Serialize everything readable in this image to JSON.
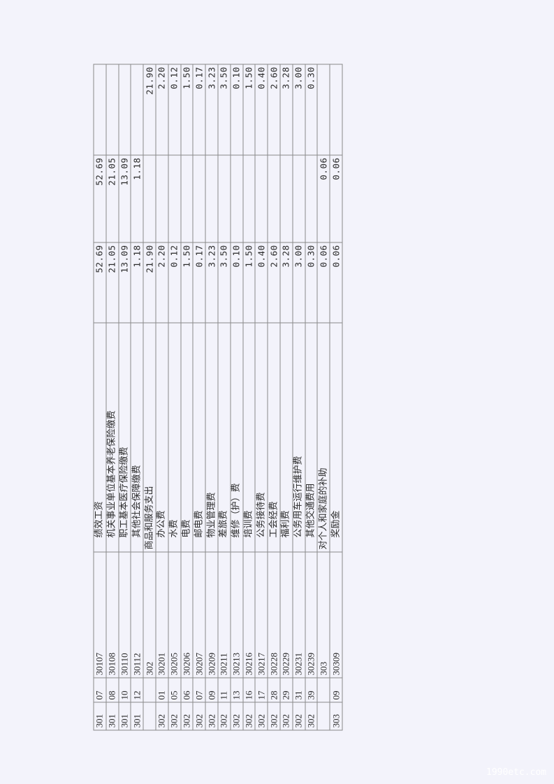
{
  "rows": [
    {
      "cls": "301",
      "item": "07",
      "code": "30107",
      "name": "绩效工资",
      "level": 2,
      "total": "52.69",
      "c2": "52.69",
      "c3": ""
    },
    {
      "cls": "301",
      "item": "08",
      "code": "30108",
      "name": "机关事业单位基本养老保险缴费",
      "level": 2,
      "total": "21.05",
      "c2": "21.05",
      "c3": ""
    },
    {
      "cls": "301",
      "item": "10",
      "code": "30110",
      "name": "职工基本医疗保险缴费",
      "level": 2,
      "total": "13.09",
      "c2": "13.09",
      "c3": ""
    },
    {
      "cls": "301",
      "item": "12",
      "code": "30112",
      "name": "其他社会保障缴费",
      "level": 2,
      "total": "1.18",
      "c2": "1.18",
      "c3": ""
    },
    {
      "cls": "",
      "item": "",
      "code": "302",
      "name": "商品和服务支出",
      "level": 1,
      "total": "21.90",
      "c2": "",
      "c3": "21.90"
    },
    {
      "cls": "302",
      "item": "01",
      "code": "30201",
      "name": "办公费",
      "level": 2,
      "total": "2.20",
      "c2": "",
      "c3": "2.20"
    },
    {
      "cls": "302",
      "item": "05",
      "code": "30205",
      "name": "水费",
      "level": 2,
      "total": "0.12",
      "c2": "",
      "c3": "0.12"
    },
    {
      "cls": "302",
      "item": "06",
      "code": "30206",
      "name": "电费",
      "level": 2,
      "total": "1.50",
      "c2": "",
      "c3": "1.50"
    },
    {
      "cls": "302",
      "item": "07",
      "code": "30207",
      "name": "邮电费",
      "level": 2,
      "total": "0.17",
      "c2": "",
      "c3": "0.17"
    },
    {
      "cls": "302",
      "item": "09",
      "code": "30209",
      "name": "物业管理费",
      "level": 2,
      "total": "3.23",
      "c2": "",
      "c3": "3.23"
    },
    {
      "cls": "302",
      "item": "11",
      "code": "30211",
      "name": "差旅费",
      "level": 2,
      "total": "3.50",
      "c2": "",
      "c3": "3.50"
    },
    {
      "cls": "302",
      "item": "13",
      "code": "30213",
      "name": "维修（护）费",
      "level": 2,
      "total": "0.10",
      "c2": "",
      "c3": "0.10"
    },
    {
      "cls": "302",
      "item": "16",
      "code": "30216",
      "name": "培训费",
      "level": 2,
      "total": "1.50",
      "c2": "",
      "c3": "1.50"
    },
    {
      "cls": "302",
      "item": "17",
      "code": "30217",
      "name": "公务接待费",
      "level": 2,
      "total": "0.40",
      "c2": "",
      "c3": "0.40"
    },
    {
      "cls": "302",
      "item": "28",
      "code": "30228",
      "name": "工会经费",
      "level": 2,
      "total": "2.60",
      "c2": "",
      "c3": "2.60"
    },
    {
      "cls": "302",
      "item": "29",
      "code": "30229",
      "name": "福利费",
      "level": 2,
      "total": "3.28",
      "c2": "",
      "c3": "3.28"
    },
    {
      "cls": "302",
      "item": "31",
      "code": "30231",
      "name": "公务用车运行维护费",
      "level": 2,
      "total": "3.00",
      "c2": "",
      "c3": "3.00"
    },
    {
      "cls": "302",
      "item": "39",
      "code": "30239",
      "name": "其他交通费用",
      "level": 2,
      "total": "0.30",
      "c2": "",
      "c3": "0.30"
    },
    {
      "cls": "",
      "item": "",
      "code": "303",
      "name": "对个人和家庭的补助",
      "level": 1,
      "total": "0.06",
      "c2": "0.06",
      "c3": ""
    },
    {
      "cls": "303",
      "item": "09",
      "code": "30309",
      "name": "奖励金",
      "level": 2,
      "total": "0.06",
      "c2": "0.06",
      "c3": ""
    }
  ],
  "watermark": "1990etc.com"
}
